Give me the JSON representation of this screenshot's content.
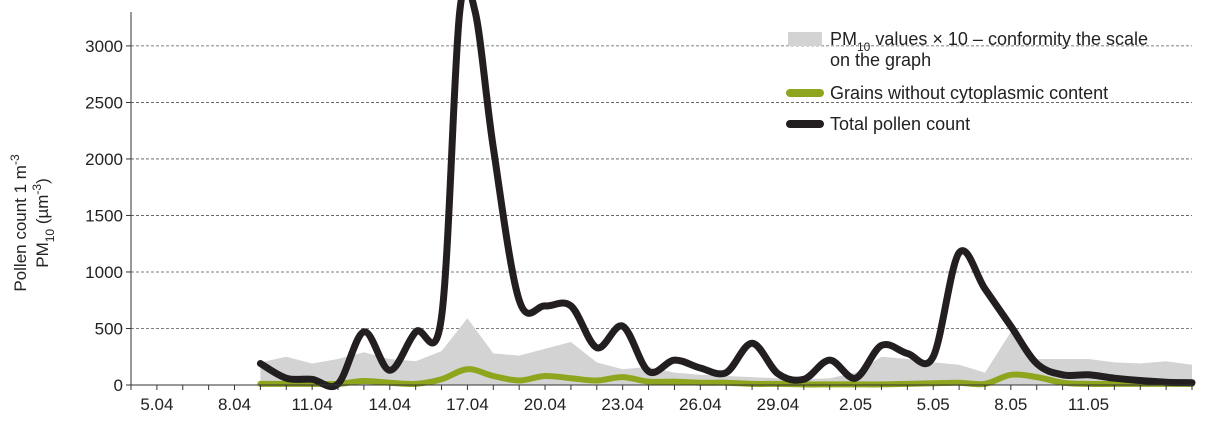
{
  "chart_data": {
    "type": "line",
    "ylabel": {
      "line1": "Pollen count 1 m",
      "line1_sup": "-3",
      "line2_a": "PM",
      "line2_sub": "10",
      "line2_b": " (µm",
      "line2_sup": "-3",
      "line2_c": ")"
    },
    "ylim": [
      0,
      3300
    ],
    "yticks": [
      0,
      500,
      1000,
      1500,
      2000,
      2500,
      3000
    ],
    "xticks": [
      "5.04",
      "8.04",
      "11.04",
      "14.04",
      "17.04",
      "20.04",
      "23.04",
      "26.04",
      "29.04",
      "2.05",
      "5.05",
      "8.05",
      "11.05"
    ],
    "x_day_range": [
      -1,
      40
    ],
    "grid": "horizontal-dashed",
    "legend_position": "top-right",
    "series": [
      {
        "key": "pm10",
        "render": "area",
        "color": "#d3d3d3",
        "legend": {
          "part1": "PM",
          "sub": "10",
          "part2": " values × 10 – conformity the scale",
          "line2": "on the graph"
        },
        "points": [
          [
            4,
            200
          ],
          [
            5,
            250
          ],
          [
            6,
            190
          ],
          [
            7,
            230
          ],
          [
            8,
            290
          ],
          [
            9,
            230
          ],
          [
            10,
            210
          ],
          [
            11,
            300
          ],
          [
            12,
            590
          ],
          [
            13,
            280
          ],
          [
            14,
            260
          ],
          [
            15,
            320
          ],
          [
            16,
            380
          ],
          [
            17,
            200
          ],
          [
            18,
            140
          ],
          [
            19,
            160
          ],
          [
            20,
            110
          ],
          [
            21,
            90
          ],
          [
            22,
            80
          ],
          [
            23,
            70
          ],
          [
            24,
            60
          ],
          [
            25,
            50
          ],
          [
            26,
            60
          ],
          [
            27,
            110
          ],
          [
            28,
            250
          ],
          [
            29,
            230
          ],
          [
            30,
            200
          ],
          [
            31,
            180
          ],
          [
            32,
            110
          ],
          [
            33,
            470
          ],
          [
            34,
            230
          ],
          [
            35,
            230
          ],
          [
            36,
            230
          ],
          [
            37,
            200
          ],
          [
            38,
            190
          ],
          [
            39,
            210
          ],
          [
            40,
            180
          ]
        ]
      },
      {
        "key": "grains",
        "render": "line",
        "color": "#8ea51e",
        "legend": {
          "part1": "Grains without cytoplasmic content"
        },
        "points": [
          [
            4,
            10
          ],
          [
            5,
            10
          ],
          [
            6,
            10
          ],
          [
            7,
            10
          ],
          [
            8,
            35
          ],
          [
            9,
            20
          ],
          [
            10,
            10
          ],
          [
            11,
            50
          ],
          [
            12,
            140
          ],
          [
            13,
            80
          ],
          [
            14,
            40
          ],
          [
            15,
            80
          ],
          [
            16,
            60
          ],
          [
            17,
            40
          ],
          [
            18,
            70
          ],
          [
            19,
            30
          ],
          [
            20,
            30
          ],
          [
            21,
            20
          ],
          [
            22,
            20
          ],
          [
            23,
            10
          ],
          [
            24,
            10
          ],
          [
            25,
            5
          ],
          [
            26,
            5
          ],
          [
            27,
            5
          ],
          [
            28,
            5
          ],
          [
            29,
            10
          ],
          [
            30,
            15
          ],
          [
            31,
            20
          ],
          [
            32,
            10
          ],
          [
            33,
            90
          ],
          [
            34,
            70
          ],
          [
            35,
            20
          ],
          [
            36,
            10
          ],
          [
            37,
            10
          ],
          [
            38,
            10
          ],
          [
            39,
            10
          ],
          [
            40,
            10
          ]
        ]
      },
      {
        "key": "total",
        "render": "line",
        "color": "#231f20",
        "legend": {
          "part1": "Total pollen count"
        },
        "points": [
          [
            4,
            190
          ],
          [
            5,
            60
          ],
          [
            6,
            50
          ],
          [
            7,
            10
          ],
          [
            8,
            470
          ],
          [
            9,
            130
          ],
          [
            10,
            470
          ],
          [
            11,
            600
          ],
          [
            11.7,
            3300
          ],
          [
            12.3,
            3300
          ],
          [
            13,
            2100
          ],
          [
            14,
            750
          ],
          [
            15,
            700
          ],
          [
            16,
            700
          ],
          [
            17,
            330
          ],
          [
            18,
            520
          ],
          [
            19,
            120
          ],
          [
            20,
            220
          ],
          [
            21,
            150
          ],
          [
            22,
            110
          ],
          [
            23,
            370
          ],
          [
            24,
            100
          ],
          [
            25,
            50
          ],
          [
            26,
            220
          ],
          [
            27,
            60
          ],
          [
            28,
            350
          ],
          [
            29,
            280
          ],
          [
            30,
            250
          ],
          [
            31,
            1170
          ],
          [
            32,
            850
          ],
          [
            33,
            520
          ],
          [
            34,
            190
          ],
          [
            35,
            90
          ],
          [
            36,
            90
          ],
          [
            37,
            60
          ],
          [
            38,
            40
          ],
          [
            39,
            25
          ],
          [
            40,
            20
          ]
        ]
      }
    ]
  }
}
